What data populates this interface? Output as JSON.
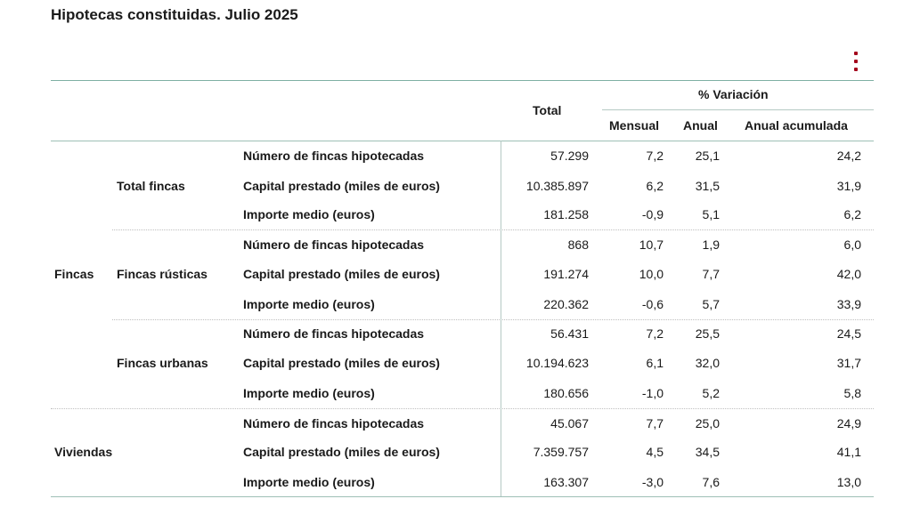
{
  "title": "Hipotecas constituidas. Julio 2025",
  "menu_icon": "more-vertical-icon",
  "accent_color": "#a3001b",
  "header": {
    "total": "Total",
    "variacion": "% Variación",
    "mensual": "Mensual",
    "anual": "Anual",
    "anual_acumulada": "Anual acumulada"
  },
  "groups": {
    "fincas": "Fincas",
    "viviendas": "Viviendas",
    "total_fincas": "Total fincas",
    "fincas_rusticas": "Fincas rústicas",
    "fincas_urbanas": "Fincas urbanas"
  },
  "rows": [
    {
      "label": "Número de fincas hipotecadas",
      "total": "57.299",
      "mensual": "7,2",
      "anual": "25,1",
      "acumulada": "24,2"
    },
    {
      "label": "Capital prestado (miles de euros)",
      "total": "10.385.897",
      "mensual": "6,2",
      "anual": "31,5",
      "acumulada": "31,9"
    },
    {
      "label": "Importe medio (euros)",
      "total": "181.258",
      "mensual": "-0,9",
      "anual": "5,1",
      "acumulada": "6,2"
    },
    {
      "label": "Número de fincas hipotecadas",
      "total": "868",
      "mensual": "10,7",
      "anual": "1,9",
      "acumulada": "6,0"
    },
    {
      "label": "Capital prestado (miles de euros)",
      "total": "191.274",
      "mensual": "10,0",
      "anual": "7,7",
      "acumulada": "42,0"
    },
    {
      "label": "Importe medio (euros)",
      "total": "220.362",
      "mensual": "-0,6",
      "anual": "5,7",
      "acumulada": "33,9"
    },
    {
      "label": "Número de fincas hipotecadas",
      "total": "56.431",
      "mensual": "7,2",
      "anual": "25,5",
      "acumulada": "24,5"
    },
    {
      "label": "Capital prestado (miles de euros)",
      "total": "10.194.623",
      "mensual": "6,1",
      "anual": "32,0",
      "acumulada": "31,7"
    },
    {
      "label": "Importe medio (euros)",
      "total": "180.656",
      "mensual": "-1,0",
      "anual": "5,2",
      "acumulada": "5,8"
    },
    {
      "label": "Número de fincas hipotecadas",
      "total": "45.067",
      "mensual": "7,7",
      "anual": "25,0",
      "acumulada": "24,9"
    },
    {
      "label": "Capital prestado (miles de euros)",
      "total": "7.359.757",
      "mensual": "4,5",
      "anual": "34,5",
      "acumulada": "41,1"
    },
    {
      "label": "Importe medio (euros)",
      "total": "163.307",
      "mensual": "-3,0",
      "anual": "7,6",
      "acumulada": "13,0"
    }
  ]
}
